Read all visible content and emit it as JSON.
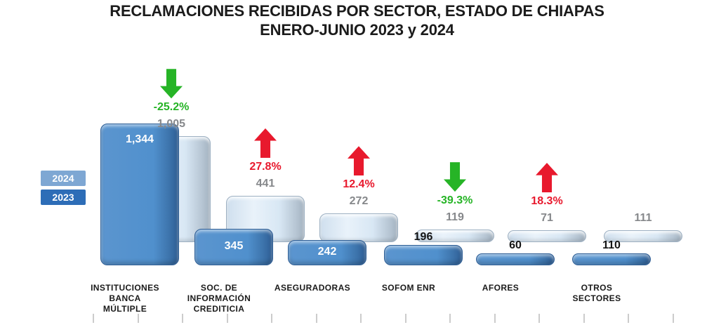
{
  "title": {
    "line1": "RECLAMACIONES RECIBIDAS POR SECTOR, ESTADO DE CHIAPAS",
    "line2": "ENERO-JUNIO 2023 y 2024"
  },
  "legend": {
    "items": [
      {
        "label": "2024",
        "color": "#7ea7d3"
      },
      {
        "label": "2023",
        "color": "#2d6db7"
      }
    ]
  },
  "chart_data": {
    "type": "bar",
    "title": "RECLAMACIONES RECIBIDAS POR SECTOR, ESTADO DE CHIAPAS ENERO-JUNIO 2023 y 2024",
    "categories": [
      "INSTITUCIONES BANCA MÚLTIPLE",
      "SOC. DE INFORMACIÓN CREDITICIA",
      "ASEGURADORAS",
      "SOFOM ENR",
      "AFORES",
      "OTROS SECTORES"
    ],
    "category_lines": [
      [
        "INSTITUCIONES",
        "BANCA",
        "MÚLTIPLE"
      ],
      [
        "SOC. DE",
        "INFORMACIÓN",
        "CREDITICIA"
      ],
      [
        "ASEGURADORAS"
      ],
      [
        "SOFOM ENR"
      ],
      [
        "AFORES"
      ],
      [
        "OTROS",
        "SECTORES"
      ]
    ],
    "series": [
      {
        "name": "2023",
        "values": [
          1344,
          345,
          242,
          196,
          60,
          110
        ],
        "labels": [
          "1,344",
          "345",
          "242",
          "196",
          "60",
          "110"
        ],
        "color": "#4f8ccb"
      },
      {
        "name": "2024",
        "values": [
          1005,
          441,
          272,
          119,
          71,
          111
        ],
        "labels": [
          "1,005",
          "441",
          "272",
          "119",
          "71",
          "111"
        ],
        "color": "#d9e7f4"
      }
    ],
    "pct_change": [
      {
        "label": "-25.2%",
        "direction": "down",
        "color": "#26b426"
      },
      {
        "label": "27.8%",
        "direction": "up",
        "color": "#e8192d"
      },
      {
        "label": "12.4%",
        "direction": "up",
        "color": "#e8192d"
      },
      {
        "label": "-39.3%",
        "direction": "down",
        "color": "#26b426"
      },
      {
        "label": "18.3%",
        "direction": "up",
        "color": "#e8192d"
      },
      null
    ],
    "legend_position": "left",
    "grid": false
  }
}
